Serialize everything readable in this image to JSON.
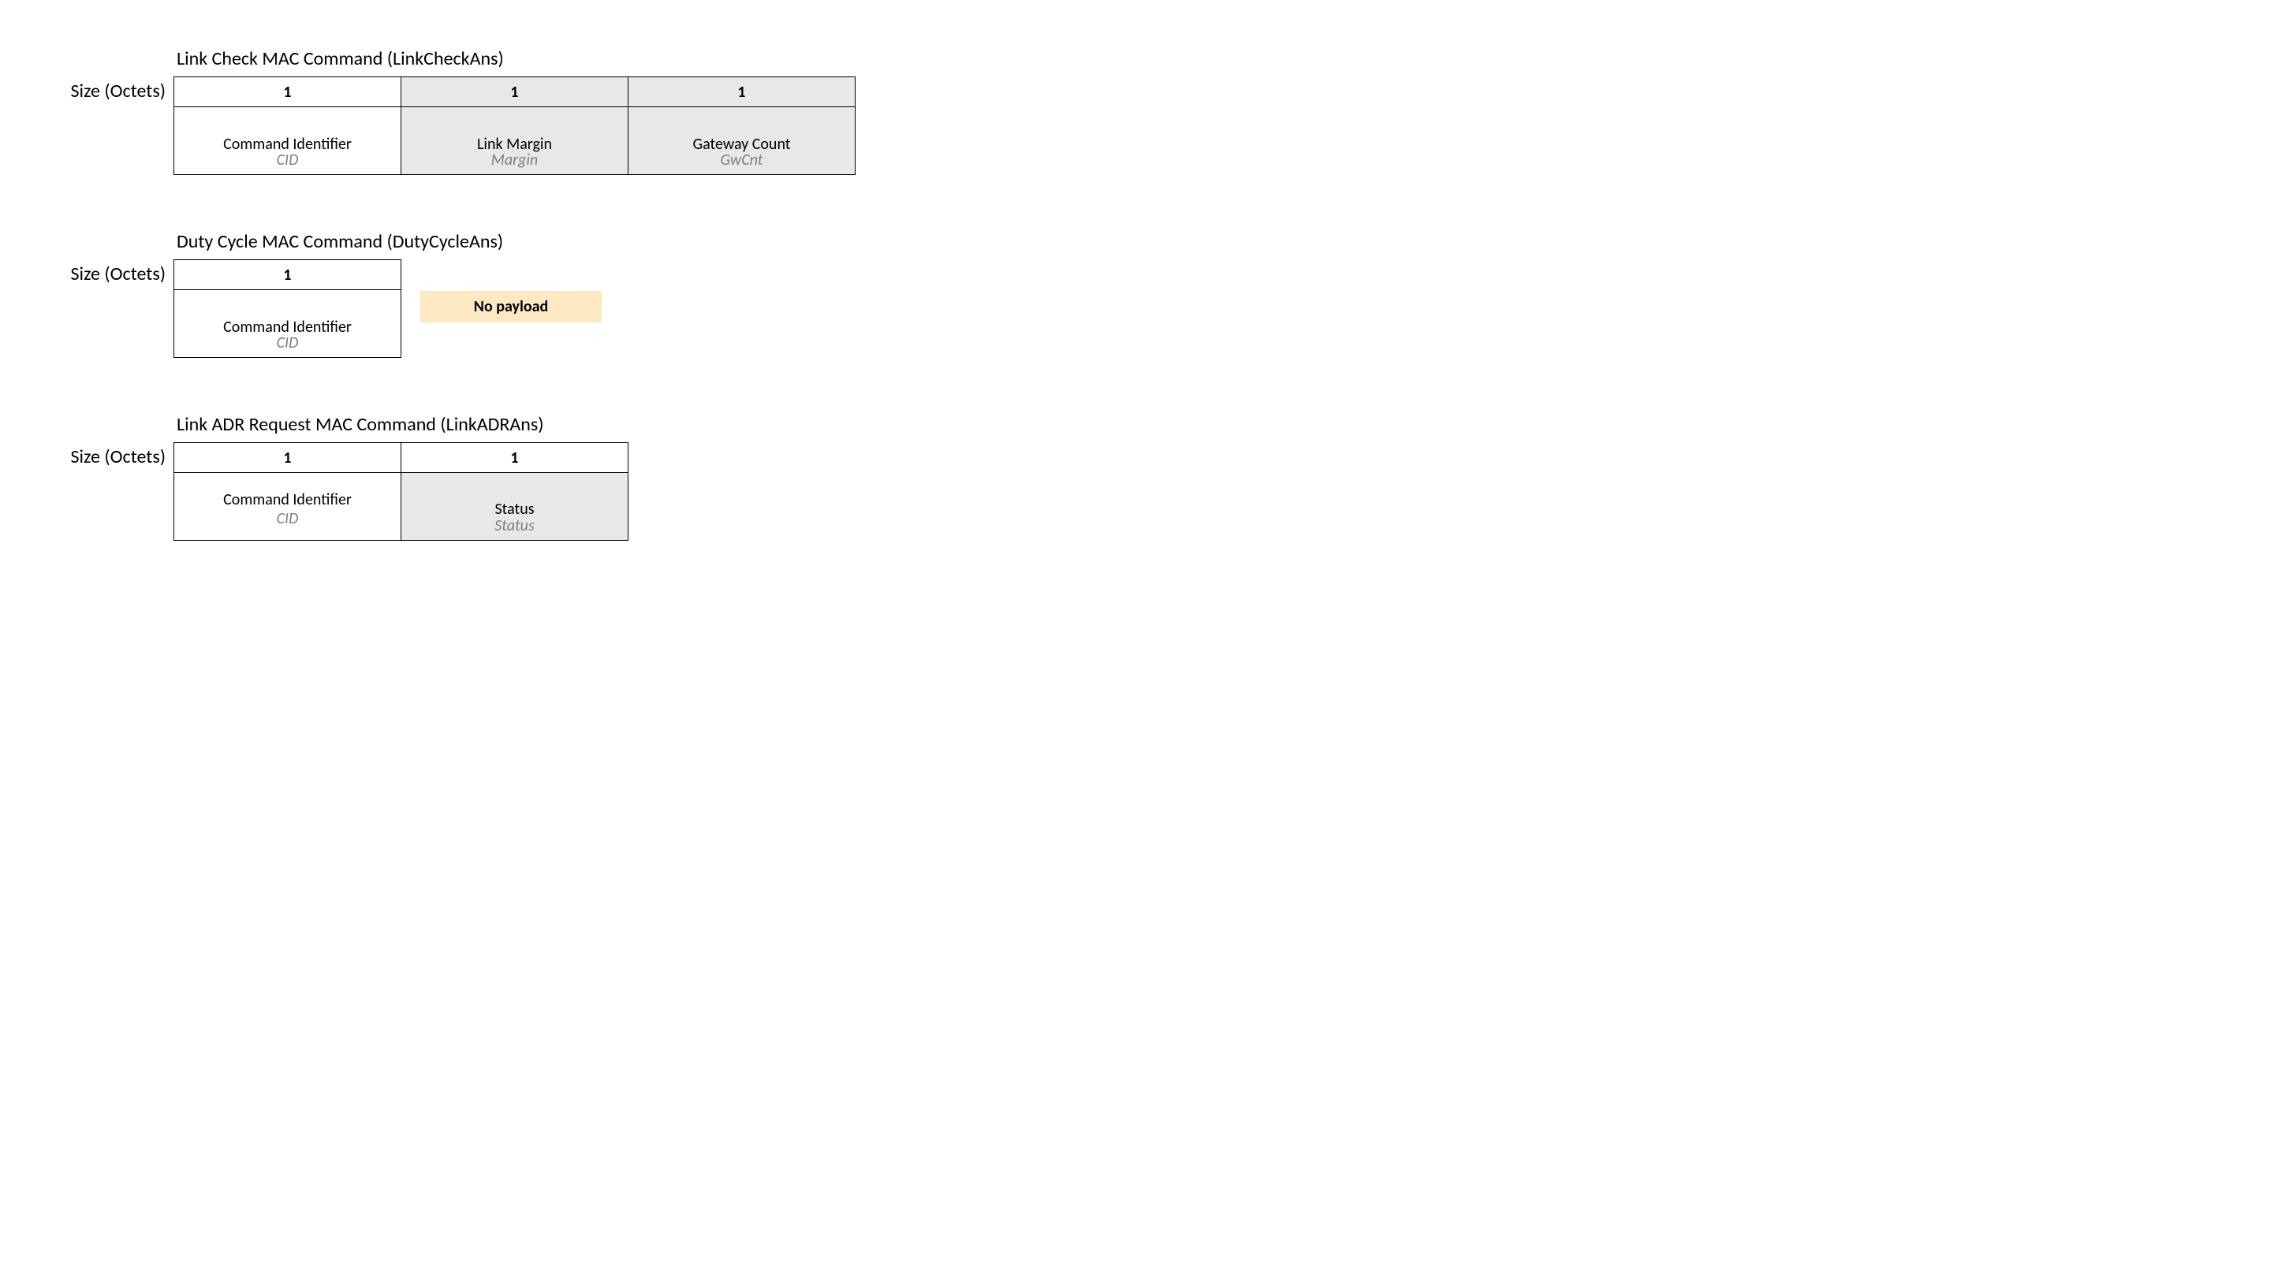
{
  "section1": {
    "title": "Link Check MAC Command (LinkCheckAns)",
    "row_label": "Size (Octets)",
    "cols": [
      {
        "size": "1",
        "name": "Command Identifier",
        "abbrev": "CID",
        "shaded": false
      },
      {
        "size": "1",
        "name": "Link Margin",
        "abbrev": "Margin",
        "shaded": true
      },
      {
        "size": "1",
        "name": "Gateway Count",
        "abbrev": "GwCnt",
        "shaded": true
      }
    ]
  },
  "section2": {
    "title": "Duty Cycle MAC Command (DutyCycleAns)",
    "row_label": "Size (Octets)",
    "cols": [
      {
        "size": "1",
        "name": "Command Identifier",
        "abbrev": "CID",
        "shaded": false
      }
    ],
    "no_payload_label": "No payload"
  },
  "section3": {
    "title": "Link ADR Request MAC Command (LinkADRAns)",
    "row_label": "Size (Octets)",
    "cols": [
      {
        "size": "1",
        "name": "Command Identifier",
        "abbrev": "CID",
        "shaded": false,
        "tight": true
      },
      {
        "size": "1",
        "name": "Status",
        "abbrev": "Status",
        "shaded": true,
        "tight": false
      }
    ]
  },
  "colors": {
    "background": "#ffffff",
    "border": "#000000",
    "shaded_cell": "#e8e8e8",
    "abbrev_text": "#7f7f7f",
    "no_payload_bg": "#fce9c4"
  }
}
